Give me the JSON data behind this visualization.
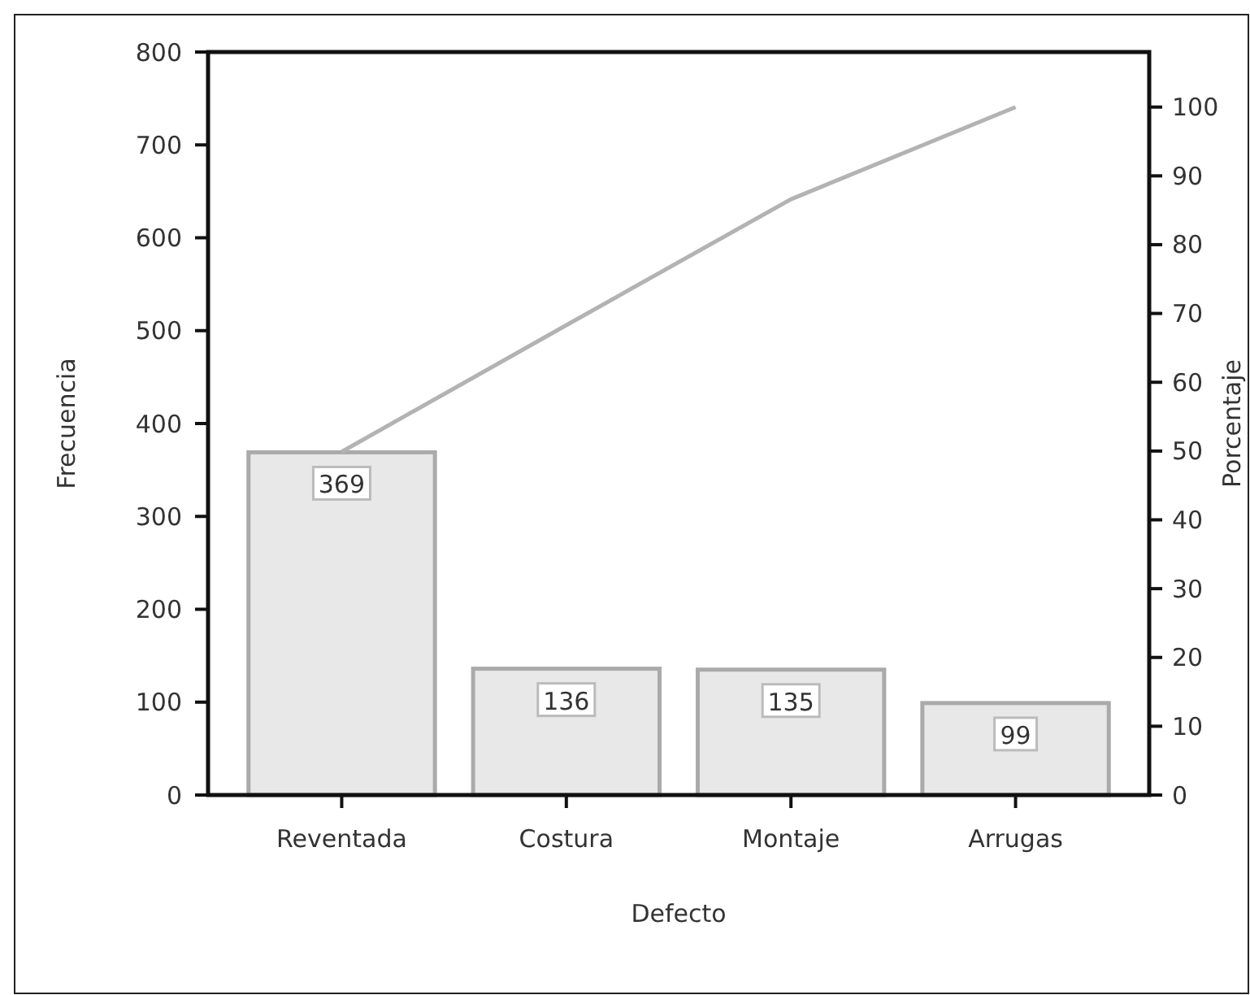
{
  "chart_data": {
    "type": "bar",
    "xlabel": "Defecto",
    "ylabel": "Frecuencia",
    "y2label": "Porcentaje",
    "categories": [
      "Reventada",
      "Costura",
      "Montaje",
      "Arrugas"
    ],
    "series": [
      {
        "color": "#e8e8e8",
        "values": [
          369,
          136,
          135,
          99
        ],
        "value_labels": [
          "369",
          "136",
          "135",
          "99"
        ]
      },
      {
        "type": "line",
        "axis": "y2",
        "color": "#b3b3b3",
        "values": [
          49.9,
          68.3,
          86.6,
          100
        ],
        "marker": "none",
        "line_style": "solid"
      }
    ],
    "ylim": [
      0,
      800
    ],
    "yticks": [
      0,
      100,
      200,
      300,
      400,
      500,
      600,
      700,
      800
    ],
    "y2lim": [
      0,
      108
    ],
    "y2ticks": [
      0,
      10,
      20,
      30,
      40,
      50,
      60,
      70,
      80,
      90,
      100
    ],
    "grid": false
  }
}
